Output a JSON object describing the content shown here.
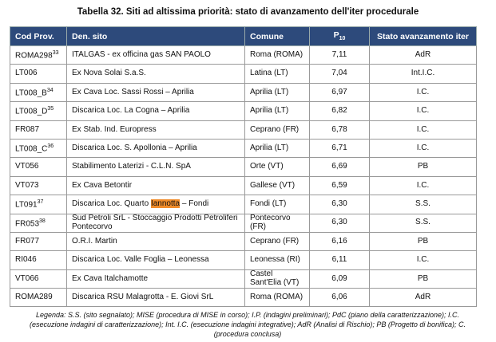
{
  "title": "Tabella 32. Siti ad altissima priorità: stato di avanzamento dell'iter procedurale",
  "table": {
    "header": {
      "code": "Cod Prov.",
      "name": "Den. sito",
      "comune": "Comune",
      "p": "P",
      "p_sub": "10",
      "stato": "Stato avanzamento iter"
    },
    "rows": [
      {
        "code": "ROMA298",
        "note": "33",
        "name": "ITALGAS - ex officina gas SAN PAOLO",
        "comune": "Roma (ROMA)",
        "p10": "7,11",
        "stato": "AdR"
      },
      {
        "code": "LT006",
        "name": "Ex Nova Solai S.a.S.",
        "comune": "Latina (LT)",
        "p10": "7,04",
        "stato": "Int.I.C."
      },
      {
        "code": "LT008_B",
        "note": "34",
        "name": "Ex Cava Loc. Sassi Rossi – Aprilia",
        "comune": "Aprilia (LT)",
        "p10": "6,97",
        "stato": "I.C."
      },
      {
        "code": "LT008_D",
        "note": "35",
        "name": "Discarica Loc. La Cogna – Aprilia",
        "comune": "Aprilia (LT)",
        "p10": "6,82",
        "stato": "I.C."
      },
      {
        "code": "FR087",
        "name": "Ex Stab. Ind. Europress",
        "comune": "Ceprano (FR)",
        "p10": "6,78",
        "stato": "I.C."
      },
      {
        "code": "LT008_C",
        "note": "36",
        "name": "Discarica Loc. S. Apollonia – Aprilia",
        "comune": "Aprilia (LT)",
        "p10": "6,71",
        "stato": "I.C."
      },
      {
        "code": "VT056",
        "name": "Stabilimento Laterizi - C.L.N. SpA",
        "comune": "Orte (VT)",
        "p10": "6,69",
        "stato": "PB"
      },
      {
        "code": "VT073",
        "name": "Ex Cava Betontir",
        "comune": "Gallese (VT)",
        "p10": "6,59",
        "stato": "I.C."
      },
      {
        "code": "LT091",
        "note": "37",
        "name": [
          "Discarica Loc. Quarto",
          "Iannotta",
          "– Fondi"
        ],
        "comune": "Fondi (LT)",
        "p10": "6,30",
        "stato": "S.S."
      },
      {
        "code": "FR053",
        "note": "38",
        "name": "Sud Petroli SrL - Stoccaggio Prodotti Petroliferi Pontecorvo",
        "comune": "Pontecorvo (FR)",
        "p10": "6,30",
        "stato": "S.S."
      },
      {
        "code": "FR077",
        "name": "O.R.I. Martin",
        "comune": "Ceprano (FR)",
        "p10": "6,16",
        "stato": "PB"
      },
      {
        "code": "RI046",
        "name": "Discarica Loc. Valle Foglia – Leonessa",
        "comune": "Leonessa (RI)",
        "p10": "6,11",
        "stato": "I.C."
      },
      {
        "code": "VT066",
        "name": "Ex Cava Italchamotte",
        "comune": "Castel Sant'Elia (VT)",
        "p10": "6,09",
        "stato": "PB"
      },
      {
        "code": "ROMA289",
        "name": "Discarica RSU Malagrotta - E. Giovi SrL",
        "comune": "Roma (ROMA)",
        "p10": "6,06",
        "stato": "AdR"
      }
    ]
  },
  "legend": "Legenda: S.S. (sito segnalato); MISE (procedura di MISE in corso); I.P. (indagini preliminari); PdC (piano della caratterizzazione); I.C. (esecuzione indagini di caratterizzazione); Int. I.C. (esecuzione indagini integrative); AdR (Analisi di Rischio); PB (Progetto di bonifica); C. (procedura conclusa)"
}
